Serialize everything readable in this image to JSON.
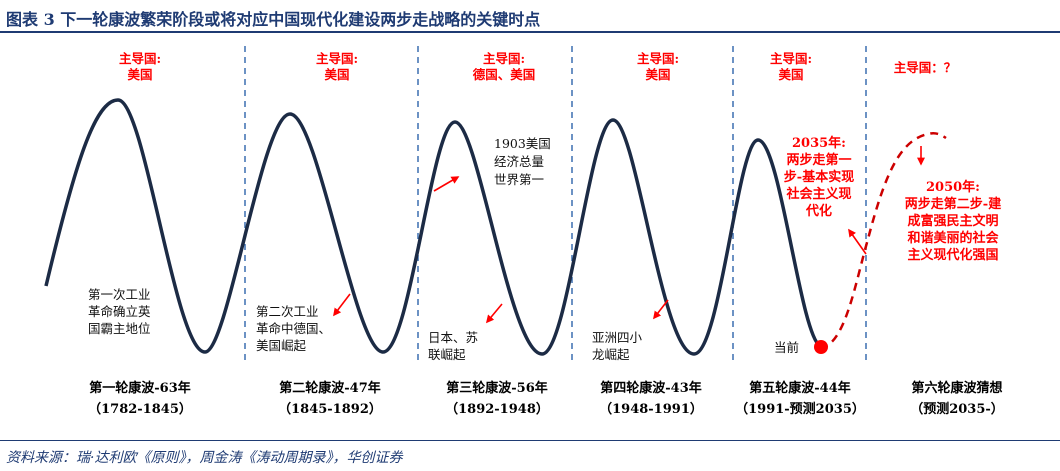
{
  "title": "图表 3   下一轮康波繁荣阶段或将对应中国现代化建设两步走战略的关键时点",
  "source": "资料来源：瑞·达利欧《原则》，周金涛《涛动周期录》，华创证券",
  "colors": {
    "navy": "#1f3b73",
    "red": "#ff0000",
    "curve": "#1c2b45",
    "divider": "#3c6fb0"
  },
  "waves": [
    {
      "leader": [
        "主导国:",
        "美国"
      ],
      "name": "第一轮康波-63年",
      "years": "（1782-1845）",
      "event": [
        "第一次工业",
        "革命确立英",
        "国霸主地位"
      ]
    },
    {
      "leader": [
        "主导国:",
        "美国"
      ],
      "name": "第二轮康波-47年",
      "years": "（1845-1892）",
      "event": [
        "第二次工业",
        "革命中德国、",
        "美国崛起"
      ]
    },
    {
      "leader": [
        "主导国:",
        "德国、美国"
      ],
      "name": "第三轮康波-56年",
      "years": "（1892-1948）",
      "event": [
        "日本、苏",
        "联崛起"
      ],
      "note": [
        "1903美国",
        "经济总量",
        "世界第一"
      ]
    },
    {
      "leader": [
        "主导国:",
        "美国"
      ],
      "name": "第四轮康波-43年",
      "years": "（1948-1991）",
      "event": [
        "亚洲四小",
        "龙崛起"
      ]
    },
    {
      "leader": [
        "主导国:",
        "美国"
      ],
      "name": "第五轮康波-44年",
      "years": "（1991-预测2035）",
      "current": "当前"
    },
    {
      "leader": [
        "主导国：？"
      ],
      "name": "第六轮康波猜想",
      "years": "（预测2035-）"
    }
  ],
  "milestones": {
    "m2035": [
      "2035年:",
      "两步走第一",
      "步-基本实现",
      "社会主义现",
      "代化"
    ],
    "m2050": [
      "2050年:",
      "两步走第二步-建",
      "成富强民主文明",
      "和谐美丽的社会",
      "主义现代化强国"
    ]
  }
}
